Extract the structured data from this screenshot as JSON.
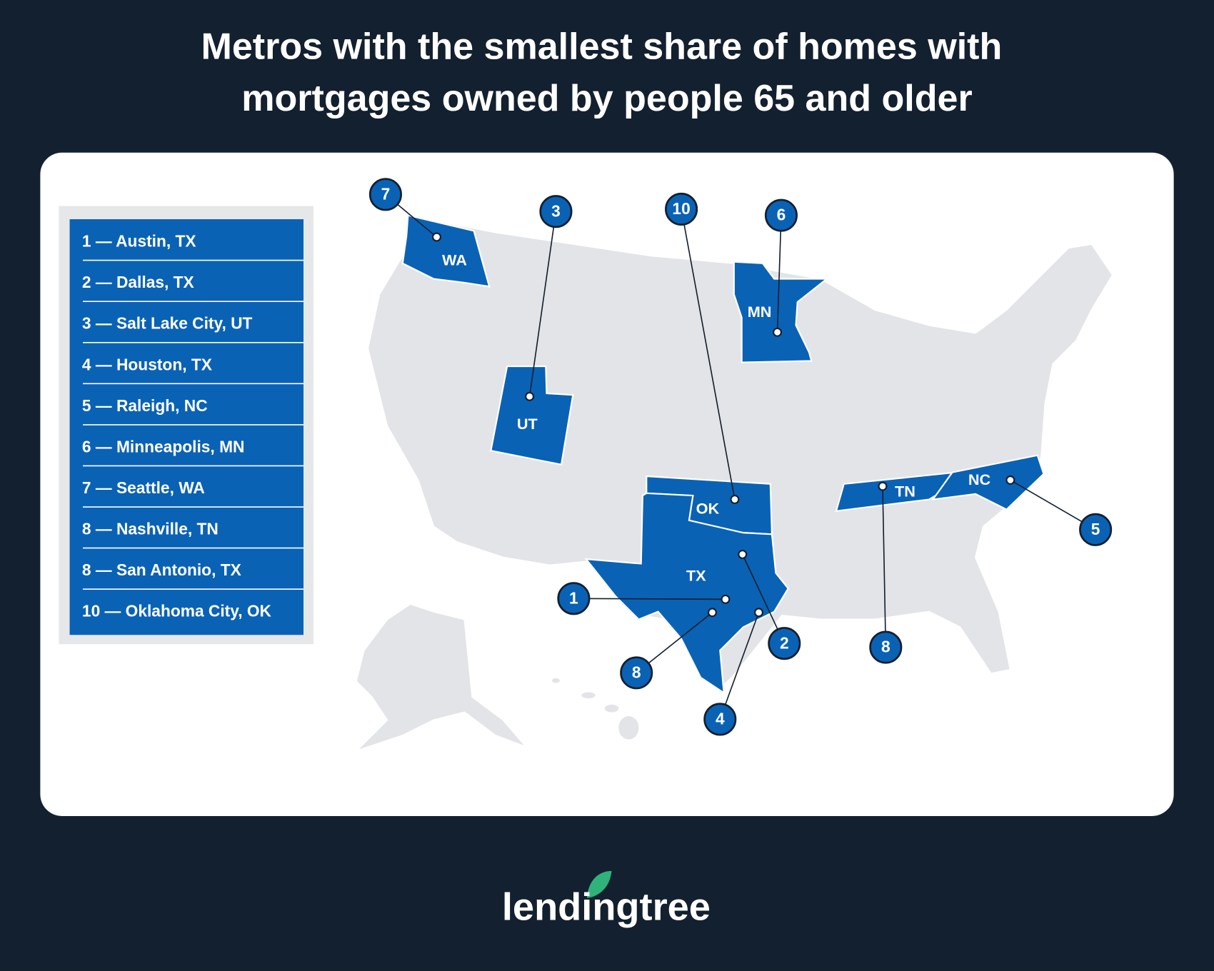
{
  "title_lines": [
    "Metros with the smallest share of homes with",
    "mortgages owned by people 65 and older"
  ],
  "ranking": [
    "1 — Austin, TX",
    "2 — Dallas, TX",
    "3 — Salt Lake City, UT",
    "4 — Houston, TX",
    "5 — Raleigh, NC",
    "6 — Minneapolis, MN",
    "7 — Seattle, WA",
    "8 — Nashville, TN",
    "8 — San Antonio, TX",
    "10 — Oklahoma City, OK"
  ],
  "states": [
    "WA",
    "UT",
    "MN",
    "OK",
    "TX",
    "TN",
    "NC"
  ],
  "markers": [
    "7",
    "3",
    "10",
    "6",
    "1",
    "2",
    "4",
    "8",
    "8",
    "5"
  ],
  "brand": "lendingtree"
}
